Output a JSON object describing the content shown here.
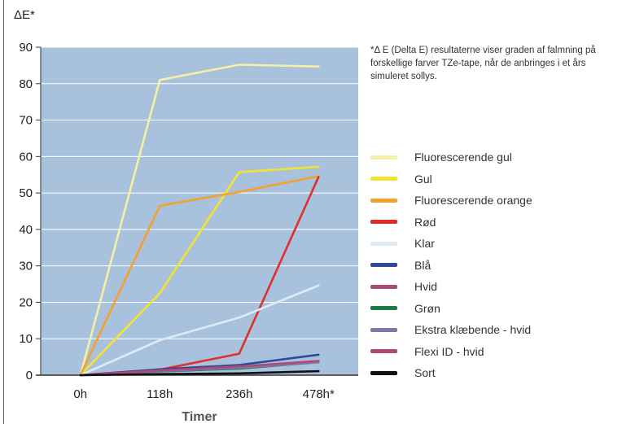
{
  "chart_data": {
    "type": "line",
    "ylabel": "ΔE*",
    "xlabel": "Timer",
    "categories": [
      "0h",
      "118h",
      "236h",
      "478h*"
    ],
    "ylim": [
      0,
      90
    ],
    "yticks": [
      0,
      10,
      20,
      30,
      40,
      50,
      60,
      70,
      80,
      90
    ],
    "plot_background": "#A8C2DE",
    "grid": true,
    "legend_position": "right",
    "note": "*Δ E (Delta E) resultaterne viser graden af falmning på forskellige farver TZe-tape, når de anbringes i et års simuleret sollys.",
    "series": [
      {
        "name": "Fluorescerende gul",
        "color": "#F6F0A4",
        "values": [
          0,
          81,
          85.2,
          84.7
        ]
      },
      {
        "name": "Gul",
        "color": "#F4E42F",
        "values": [
          0,
          22.5,
          55.7,
          57.2
        ]
      },
      {
        "name": "Fluorescerende orange",
        "color": "#F5A12E",
        "values": [
          0,
          46.5,
          50.3,
          54.6
        ]
      },
      {
        "name": "Rød",
        "color": "#DF2E2B",
        "values": [
          0,
          1.5,
          5.9,
          54.4
        ]
      },
      {
        "name": "Klar",
        "color": "#DCEBF6",
        "values": [
          0,
          9.6,
          15.8,
          24.6
        ]
      },
      {
        "name": "Blå",
        "color": "#2F4898",
        "values": [
          0,
          1.6,
          2.8,
          5.6
        ]
      },
      {
        "name": "Hvid",
        "color": "#A84A7A",
        "values": [
          0,
          1.2,
          2.2,
          3.8
        ]
      },
      {
        "name": "Grøn",
        "color": "#1C7A43",
        "values": [
          0,
          1.0,
          1.8,
          3.6
        ]
      },
      {
        "name": "Ekstra klæbende - hvid",
        "color": "#7C78A8",
        "values": [
          0,
          1.1,
          2.0,
          3.5
        ]
      },
      {
        "name": "Flexi ID - hvid",
        "color": "#B24878",
        "values": [
          0,
          1.3,
          2.4,
          3.9
        ]
      },
      {
        "name": "Sort",
        "color": "#111111",
        "values": [
          0,
          0.3,
          0.5,
          1.1
        ]
      }
    ]
  }
}
